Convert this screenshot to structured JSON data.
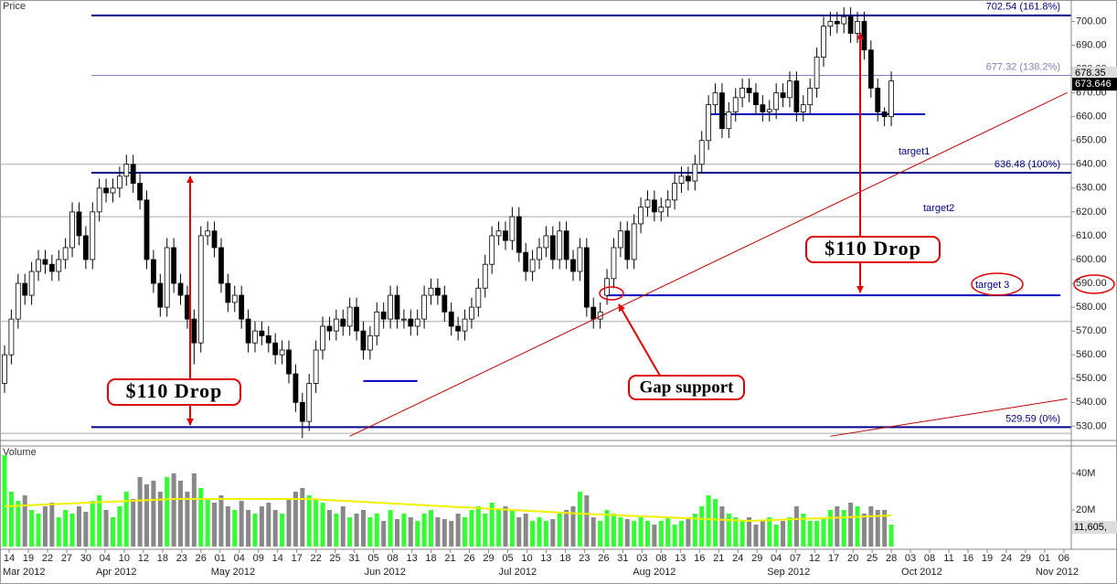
{
  "chart_data": {
    "type": "candlestick",
    "price_label": "Price",
    "volume_label": "Volume",
    "x_labels": [
      "14",
      "19",
      "22",
      "27",
      "30",
      "04",
      "10",
      "12",
      "18",
      "23",
      "26",
      "01",
      "04",
      "09",
      "14",
      "17",
      "22",
      "25",
      "31",
      "05",
      "08",
      "13",
      "18",
      "21",
      "26",
      "29",
      "05",
      "10",
      "13",
      "18",
      "23",
      "26",
      "31",
      "03",
      "08",
      "13",
      "16",
      "21",
      "24",
      "29",
      "04",
      "07",
      "12",
      "17",
      "20",
      "25",
      "28",
      "03",
      "08",
      "11",
      "16",
      "19",
      "24",
      "29",
      "01",
      "06"
    ],
    "months": [
      "Mar 2012",
      "Apr 2012",
      "May 2012",
      "Jun 2012",
      "Jul 2012",
      "Aug 2012",
      "Sep 2012",
      "Oct 2012",
      "Nov 2012"
    ],
    "open": [
      548,
      560,
      575,
      590,
      585,
      595,
      600,
      598,
      595,
      600,
      605,
      620,
      610,
      600,
      620,
      630,
      628,
      630,
      635,
      640,
      632,
      625,
      600,
      590,
      580,
      605,
      590,
      585,
      575,
      565,
      610,
      612,
      605,
      590,
      582,
      585,
      575,
      565,
      570,
      568,
      565,
      560,
      562,
      552,
      540,
      532,
      548,
      562,
      572,
      570,
      575,
      572,
      580,
      570,
      562,
      568,
      578,
      575,
      585,
      575,
      575,
      572,
      575,
      585,
      588,
      585,
      578,
      572,
      570,
      575,
      580,
      588,
      598,
      610,
      612,
      608,
      618,
      603,
      595,
      600,
      605,
      610,
      600,
      612,
      600,
      595,
      605,
      580,
      575,
      585,
      592,
      605,
      612,
      600,
      615,
      622,
      625,
      620,
      622,
      625,
      632,
      635,
      633,
      640,
      650,
      665,
      670,
      655,
      662,
      668,
      672,
      670,
      665,
      662,
      663,
      670,
      668,
      675,
      662,
      665,
      672,
      685,
      698,
      700,
      699,
      702,
      695,
      700,
      688,
      672,
      662,
      660
    ],
    "high": [
      564,
      579,
      594,
      594,
      599,
      604,
      604,
      602,
      604,
      609,
      624,
      624,
      614,
      624,
      634,
      634,
      634,
      639,
      644,
      644,
      636,
      629,
      604,
      594,
      609,
      609,
      594,
      589,
      579,
      614,
      616,
      616,
      609,
      594,
      589,
      589,
      579,
      574,
      574,
      572,
      569,
      566,
      566,
      556,
      544,
      552,
      566,
      576,
      576,
      579,
      579,
      584,
      584,
      574,
      572,
      582,
      582,
      589,
      589,
      579,
      579,
      579,
      589,
      592,
      592,
      589,
      582,
      576,
      579,
      584,
      592,
      602,
      614,
      616,
      616,
      622,
      622,
      607,
      604,
      609,
      614,
      614,
      616,
      616,
      604,
      609,
      609,
      584,
      582,
      596,
      609,
      616,
      616,
      619,
      626,
      629,
      629,
      626,
      629,
      636,
      639,
      639,
      644,
      654,
      669,
      674,
      674,
      666,
      672,
      676,
      676,
      674,
      669,
      667,
      674,
      674,
      679,
      679,
      669,
      676,
      689,
      702,
      704,
      704,
      706,
      706,
      704,
      704,
      692,
      676,
      664,
      679
    ],
    "low": [
      544,
      556,
      571,
      581,
      581,
      591,
      594,
      591,
      591,
      596,
      601,
      606,
      596,
      596,
      616,
      624,
      624,
      626,
      631,
      628,
      621,
      596,
      586,
      576,
      576,
      586,
      581,
      571,
      556,
      561,
      606,
      601,
      586,
      578,
      578,
      571,
      561,
      561,
      564,
      561,
      556,
      556,
      548,
      536,
      525,
      528,
      544,
      558,
      566,
      566,
      568,
      568,
      566,
      558,
      558,
      564,
      571,
      571,
      571,
      571,
      568,
      568,
      571,
      581,
      581,
      574,
      568,
      566,
      566,
      571,
      576,
      584,
      594,
      606,
      604,
      604,
      599,
      591,
      591,
      596,
      601,
      596,
      596,
      596,
      591,
      591,
      576,
      571,
      571,
      581,
      588,
      601,
      596,
      596,
      611,
      618,
      616,
      616,
      618,
      621,
      628,
      629,
      629,
      636,
      646,
      661,
      651,
      651,
      658,
      664,
      666,
      661,
      658,
      658,
      659,
      664,
      664,
      658,
      658,
      661,
      668,
      681,
      694,
      695,
      695,
      691,
      691,
      684,
      668,
      658,
      656,
      656
    ],
    "close": [
      560,
      575,
      590,
      585,
      595,
      600,
      598,
      595,
      600,
      605,
      620,
      610,
      600,
      620,
      630,
      628,
      630,
      635,
      640,
      632,
      625,
      600,
      590,
      580,
      605,
      590,
      585,
      575,
      565,
      610,
      612,
      605,
      590,
      582,
      585,
      575,
      565,
      570,
      568,
      565,
      560,
      562,
      552,
      540,
      532,
      548,
      562,
      572,
      570,
      575,
      572,
      580,
      570,
      562,
      568,
      578,
      575,
      585,
      575,
      575,
      572,
      575,
      585,
      588,
      585,
      578,
      572,
      570,
      575,
      580,
      588,
      598,
      610,
      612,
      608,
      618,
      603,
      595,
      600,
      605,
      610,
      600,
      612,
      600,
      595,
      605,
      580,
      575,
      578,
      592,
      605,
      612,
      600,
      615,
      622,
      625,
      620,
      622,
      625,
      632,
      635,
      633,
      640,
      650,
      665,
      670,
      655,
      662,
      668,
      672,
      670,
      665,
      662,
      663,
      670,
      668,
      675,
      662,
      665,
      672,
      685,
      698,
      700,
      699,
      702,
      695,
      700,
      688,
      672,
      662,
      660,
      675
    ],
    "up_color": "#ffffff",
    "down_color": "#000000",
    "ylim": [
      524,
      709
    ],
    "yticks": [
      {
        "value": 530,
        "label": "530.00"
      },
      {
        "value": 540,
        "label": "540.00"
      },
      {
        "value": 550,
        "label": "550.00"
      },
      {
        "value": 560,
        "label": "560.00"
      },
      {
        "value": 570,
        "label": "570.00"
      },
      {
        "value": 580,
        "label": "580.00"
      },
      {
        "value": 590,
        "label": "590.00"
      },
      {
        "value": 600,
        "label": "600.00"
      },
      {
        "value": 610,
        "label": "610.00"
      },
      {
        "value": 620,
        "label": "620.00"
      },
      {
        "value": 630,
        "label": "630.00"
      },
      {
        "value": 640,
        "label": "640.00"
      },
      {
        "value": 650,
        "label": "650.00"
      },
      {
        "value": 660,
        "label": "660.00"
      },
      {
        "value": 670,
        "label": "670.00"
      },
      {
        "value": 680,
        "label": "680.00"
      },
      {
        "value": 690,
        "label": "690.00"
      },
      {
        "value": 700,
        "label": "700.00"
      }
    ],
    "last_prices": [
      {
        "value": 678.35,
        "label": "678.35"
      },
      {
        "value": 673.646,
        "label": "673.646"
      }
    ],
    "ref_lines": [
      640,
      618,
      574,
      527
    ],
    "levels": [
      {
        "value": 702.54,
        "label": "702.54 (161.8%)",
        "color": "#00008b"
      },
      {
        "value": 677.32,
        "label": "677.32 (138.2%)",
        "color": "#8080c0"
      },
      {
        "value": 636.48,
        "label": "636.48 (100%)",
        "color": "#00008b"
      },
      {
        "value": 529.59,
        "label": "529.59 (0%)",
        "color": "#00008b"
      }
    ],
    "support_lines": [
      {
        "y": 661,
        "x": [
          104,
          136
        ]
      },
      {
        "y": 585,
        "x": [
          89,
          156
        ]
      },
      {
        "y": 549,
        "x": [
          53,
          61
        ]
      }
    ],
    "trend_lines": [
      {
        "x": [
          51,
          157
        ],
        "y": [
          525.8,
          670.1
        ],
        "color": "#c00000"
      },
      {
        "x": [
          122,
          157
        ],
        "y": [
          525.8,
          541.5
        ],
        "color": "#c00000"
      }
    ],
    "annotations": [
      "$110 Drop",
      "$110 Drop",
      "Gap support",
      "target1",
      "target2",
      "target 3"
    ],
    "volume": {
      "values": [
        50,
        30,
        25,
        28,
        20,
        18,
        22,
        24,
        16,
        20,
        18,
        22,
        19,
        25,
        28,
        20,
        16,
        22,
        30,
        26,
        38,
        34,
        36,
        30,
        38,
        40,
        36,
        30,
        40,
        32,
        26,
        24,
        28,
        22,
        20,
        25,
        20,
        18,
        22,
        24,
        20,
        18,
        26,
        30,
        32,
        28,
        26,
        24,
        20,
        18,
        22,
        16,
        18,
        20,
        16,
        18,
        14,
        20,
        15,
        18,
        16,
        14,
        18,
        20,
        16,
        15,
        14,
        18,
        16,
        20,
        22,
        18,
        24,
        20,
        22,
        20,
        16,
        18,
        14,
        16,
        14,
        15,
        18,
        20,
        22,
        30,
        28,
        16,
        14,
        20,
        18,
        16,
        15,
        14,
        16,
        14,
        12,
        14,
        16,
        12,
        14,
        16,
        18,
        22,
        28,
        26,
        22,
        18,
        16,
        14,
        16,
        12,
        14,
        16,
        12,
        14,
        16,
        22,
        18,
        14,
        14,
        16,
        20,
        22,
        20,
        24,
        22,
        18,
        22,
        20,
        20,
        12
      ],
      "up_color": "#33ff33",
      "down_color": "#888888",
      "ylim": [
        0,
        54
      ],
      "yticks": [
        {
          "value": 20,
          "label": "20M"
        },
        {
          "value": 40,
          "label": "40M"
        }
      ],
      "ma": {
        "x": [
          0,
          25,
          45,
          85,
          110,
          131
        ],
        "values": [
          22,
          26,
          26,
          18,
          14,
          17
        ],
        "color": "#f0f000"
      },
      "last_label": "11,605,"
    }
  }
}
